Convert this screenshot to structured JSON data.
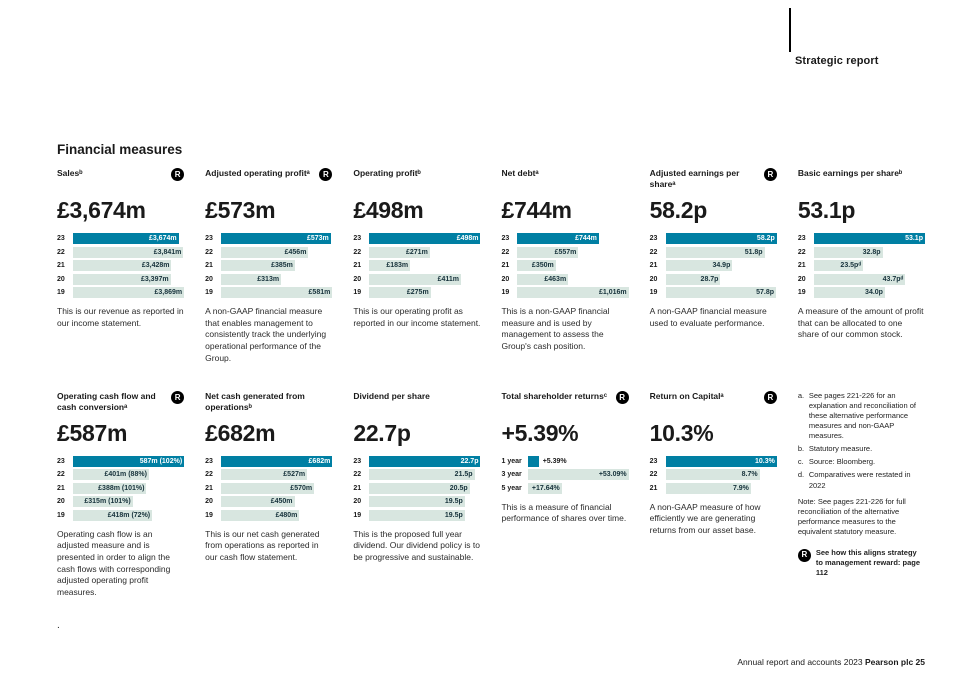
{
  "colors": {
    "accent": "#007fa3",
    "bar_light": "#d8e6e0",
    "ink": "#1a1a1a"
  },
  "ui": {
    "badge_letter": "R"
  },
  "header": {
    "section_label": "Strategic report"
  },
  "page": {
    "heading": "Financial measures",
    "footer_left": "Annual report and accounts 2023 ",
    "footer_right": "Pearson plc 25",
    "stray_dot": "."
  },
  "metrics_row1": [
    {
      "id": "sales",
      "title": "Salesᵇ",
      "badge": true,
      "headline": "£3,674m",
      "rows": [
        {
          "label": "23",
          "text": "£3,674m",
          "value": 3674,
          "dark": true
        },
        {
          "label": "22",
          "text": "£3,841m",
          "value": 3841
        },
        {
          "label": "21",
          "text": "£3,428m",
          "value": 3428
        },
        {
          "label": "20",
          "text": "£3,397m",
          "value": 3397
        },
        {
          "label": "19",
          "text": "£3,869m",
          "value": 3869
        }
      ],
      "desc": "This is our revenue as reported in our income statement."
    },
    {
      "id": "adjusted-operating-profit",
      "title": "Adjusted operating profitᵃ",
      "badge": true,
      "headline": "£573m",
      "rows": [
        {
          "label": "23",
          "text": "£573m",
          "value": 573,
          "dark": true
        },
        {
          "label": "22",
          "text": "£456m",
          "value": 456
        },
        {
          "label": "21",
          "text": "£385m",
          "value": 385
        },
        {
          "label": "20",
          "text": "£313m",
          "value": 313
        },
        {
          "label": "19",
          "text": "£581m",
          "value": 581
        }
      ],
      "desc": "A non-GAAP financial measure that enables management to consistently track the underlying operational performance of the Group."
    },
    {
      "id": "operating-profit",
      "title": "Operating profitᵇ",
      "badge": false,
      "headline": "£498m",
      "rows": [
        {
          "label": "23",
          "text": "£498m",
          "value": 498,
          "dark": true
        },
        {
          "label": "22",
          "text": "£271m",
          "value": 271
        },
        {
          "label": "21",
          "text": "£183m",
          "value": 183
        },
        {
          "label": "20",
          "text": "£411m",
          "value": 411
        },
        {
          "label": "19",
          "text": "£275m",
          "value": 275
        }
      ],
      "desc": "This is our operating profit as reported in our income statement."
    },
    {
      "id": "net-debt",
      "title": "Net debtᵃ",
      "badge": false,
      "headline": "£744m",
      "rows": [
        {
          "label": "23",
          "text": "£744m",
          "value": 744,
          "dark": true
        },
        {
          "label": "22",
          "text": "£557m",
          "value": 557
        },
        {
          "label": "21",
          "text": "£350m",
          "value": 350
        },
        {
          "label": "20",
          "text": "£463m",
          "value": 463
        },
        {
          "label": "19",
          "text": "£1,016m",
          "value": 1016
        }
      ],
      "desc": "This is a non-GAAP financial measure and is used by management to assess the Group's cash position."
    },
    {
      "id": "adjusted-eps",
      "title": "Adjusted earnings per shareᵃ",
      "badge": true,
      "headline": "58.2p",
      "rows": [
        {
          "label": "23",
          "text": "58.2p",
          "value": 58.2,
          "dark": true
        },
        {
          "label": "22",
          "text": "51.8p",
          "value": 51.8
        },
        {
          "label": "21",
          "text": "34.9p",
          "value": 34.9
        },
        {
          "label": "20",
          "text": "28.7p",
          "value": 28.7
        },
        {
          "label": "19",
          "text": "57.8p",
          "value": 57.8
        }
      ],
      "desc": "A non-GAAP financial measure used to evaluate performance."
    },
    {
      "id": "basic-eps",
      "title": "Basic earnings per shareᵇ",
      "badge": false,
      "headline": "53.1p",
      "rows": [
        {
          "label": "23",
          "text": "53.1p",
          "value": 53.1,
          "dark": true
        },
        {
          "label": "22",
          "text": "32.8p",
          "value": 32.8
        },
        {
          "label": "21",
          "text": "23.5pᵈ",
          "value": 23.5
        },
        {
          "label": "20",
          "text": "43.7pᵈ",
          "value": 43.7
        },
        {
          "label": "19",
          "text": "34.0p",
          "value": 34.0
        }
      ],
      "desc": "A measure of the amount of profit that can be allocated to one share of our common stock."
    }
  ],
  "metrics_row2": [
    {
      "id": "operating-cash-flow",
      "title": "Operating cash flow and cash conversionᵃ",
      "badge": true,
      "headline": "£587m",
      "rows": [
        {
          "label": "23",
          "text": "587m (102%)",
          "value": 587,
          "dark": true
        },
        {
          "label": "22",
          "text": "£401m (88%)",
          "value": 401
        },
        {
          "label": "21",
          "text": "£388m (101%)",
          "value": 388
        },
        {
          "label": "20",
          "text": "£315m (101%)",
          "value": 315
        },
        {
          "label": "19",
          "text": "£418m (72%)",
          "value": 418
        }
      ],
      "desc": "Operating cash flow is an adjusted measure and is presented in order to align the cash flows with corresponding adjusted operating profit measures."
    },
    {
      "id": "net-cash-from-operations",
      "title": "Net cash generated from operationsᵇ",
      "badge": false,
      "headline": "£682m",
      "rows": [
        {
          "label": "23",
          "text": "£682m",
          "value": 682,
          "dark": true
        },
        {
          "label": "22",
          "text": "£527m",
          "value": 527
        },
        {
          "label": "21",
          "text": "£570m",
          "value": 570
        },
        {
          "label": "20",
          "text": "£450m",
          "value": 450
        },
        {
          "label": "19",
          "text": "£480m",
          "value": 480
        }
      ],
      "desc": "This is our net cash generated from operations as reported in our cash flow statement."
    },
    {
      "id": "dividend-per-share",
      "title": "Dividend per share",
      "badge": false,
      "headline": "22.7p",
      "rows": [
        {
          "label": "23",
          "text": "22.7p",
          "value": 22.7,
          "dark": true
        },
        {
          "label": "22",
          "text": "21.5p",
          "value": 21.5
        },
        {
          "label": "21",
          "text": "20.5p",
          "value": 20.5
        },
        {
          "label": "20",
          "text": "19.5p",
          "value": 19.5
        },
        {
          "label": "19",
          "text": "19.5p",
          "value": 19.5
        }
      ],
      "desc": "This is the proposed full year dividend. Our dividend policy is to be progressive and sustainable."
    },
    {
      "id": "total-shareholder-returns",
      "title": "Total shareholder returnsᶜ",
      "badge": true,
      "headline": "+5.39%",
      "label_width": 27,
      "rows": [
        {
          "label": "1 year",
          "text": "+5.39%",
          "value": 5.39,
          "dark": true,
          "outside": true
        },
        {
          "label": "3 year",
          "text": "+53.09%",
          "value": 53.09
        },
        {
          "label": "5 year",
          "text": "+17.64%",
          "value": 17.64
        }
      ],
      "desc": "This is a measure of financial performance of shares over time."
    },
    {
      "id": "return-on-capital",
      "title": "Return on Capitalᵃ",
      "badge": true,
      "headline": "10.3%",
      "rows": [
        {
          "label": "23",
          "text": "10.3%",
          "value": 10.3,
          "dark": true
        },
        {
          "label": "22",
          "text": "8.7%",
          "value": 8.7
        },
        {
          "label": "21",
          "text": "7.9%",
          "value": 7.9
        }
      ],
      "desc": "A non-GAAP measure of how efficiently we are generating returns from our asset base."
    }
  ],
  "footnotes": {
    "items": [
      {
        "letter": "a.",
        "text": "See pages 221-226 for an explanation and reconciliation of these alternative performance measures and non-GAAP measures."
      },
      {
        "letter": "b.",
        "text": "Statutory measure."
      },
      {
        "letter": "c.",
        "text": "Source: Bloomberg."
      },
      {
        "letter": "d.",
        "text": "Comparatives were restated in 2022"
      }
    ],
    "note": "Note: See pages 221-226 for full reconciliation of the alternative performance measures to the equivalent statutory measure.",
    "reward": "See how this aligns strategy to management reward: page 112"
  },
  "chart_data": [
    {
      "type": "bar",
      "orientation": "horizontal",
      "title": "Salesᵇ",
      "headline": "£3,674m",
      "categories": [
        "23",
        "22",
        "21",
        "20",
        "19"
      ],
      "values": [
        3674,
        3841,
        3428,
        3397,
        3869
      ],
      "unit": "£m"
    },
    {
      "type": "bar",
      "orientation": "horizontal",
      "title": "Adjusted operating profitᵃ",
      "headline": "£573m",
      "categories": [
        "23",
        "22",
        "21",
        "20",
        "19"
      ],
      "values": [
        573,
        456,
        385,
        313,
        581
      ],
      "unit": "£m"
    },
    {
      "type": "bar",
      "orientation": "horizontal",
      "title": "Operating profitᵇ",
      "headline": "£498m",
      "categories": [
        "23",
        "22",
        "21",
        "20",
        "19"
      ],
      "values": [
        498,
        271,
        183,
        411,
        275
      ],
      "unit": "£m"
    },
    {
      "type": "bar",
      "orientation": "horizontal",
      "title": "Net debtᵃ",
      "headline": "£744m",
      "categories": [
        "23",
        "22",
        "21",
        "20",
        "19"
      ],
      "values": [
        744,
        557,
        350,
        463,
        1016
      ],
      "unit": "£m"
    },
    {
      "type": "bar",
      "orientation": "horizontal",
      "title": "Adjusted earnings per shareᵃ",
      "headline": "58.2p",
      "categories": [
        "23",
        "22",
        "21",
        "20",
        "19"
      ],
      "values": [
        58.2,
        51.8,
        34.9,
        28.7,
        57.8
      ],
      "unit": "p"
    },
    {
      "type": "bar",
      "orientation": "horizontal",
      "title": "Basic earnings per shareᵇ",
      "headline": "53.1p",
      "categories": [
        "23",
        "22",
        "21",
        "20",
        "19"
      ],
      "values": [
        53.1,
        32.8,
        23.5,
        43.7,
        34.0
      ],
      "unit": "p"
    },
    {
      "type": "bar",
      "orientation": "horizontal",
      "title": "Operating cash flow and cash conversionᵃ",
      "headline": "£587m",
      "categories": [
        "23",
        "22",
        "21",
        "20",
        "19"
      ],
      "values": [
        587,
        401,
        388,
        315,
        418
      ],
      "conversion": [
        "102%",
        "88%",
        "101%",
        "101%",
        "72%"
      ],
      "unit": "£m"
    },
    {
      "type": "bar",
      "orientation": "horizontal",
      "title": "Net cash generated from operationsᵇ",
      "headline": "£682m",
      "categories": [
        "23",
        "22",
        "21",
        "20",
        "19"
      ],
      "values": [
        682,
        527,
        570,
        450,
        480
      ],
      "unit": "£m"
    },
    {
      "type": "bar",
      "orientation": "horizontal",
      "title": "Dividend per share",
      "headline": "22.7p",
      "categories": [
        "23",
        "22",
        "21",
        "20",
        "19"
      ],
      "values": [
        22.7,
        21.5,
        20.5,
        19.5,
        19.5
      ],
      "unit": "p"
    },
    {
      "type": "bar",
      "orientation": "horizontal",
      "title": "Total shareholder returnsᶜ",
      "headline": "+5.39%",
      "categories": [
        "1 year",
        "3 year",
        "5 year"
      ],
      "values": [
        5.39,
        53.09,
        17.64
      ],
      "unit": "%"
    },
    {
      "type": "bar",
      "orientation": "horizontal",
      "title": "Return on Capitalᵃ",
      "headline": "10.3%",
      "categories": [
        "23",
        "22",
        "21"
      ],
      "values": [
        10.3,
        8.7,
        7.9
      ],
      "unit": "%"
    }
  ]
}
